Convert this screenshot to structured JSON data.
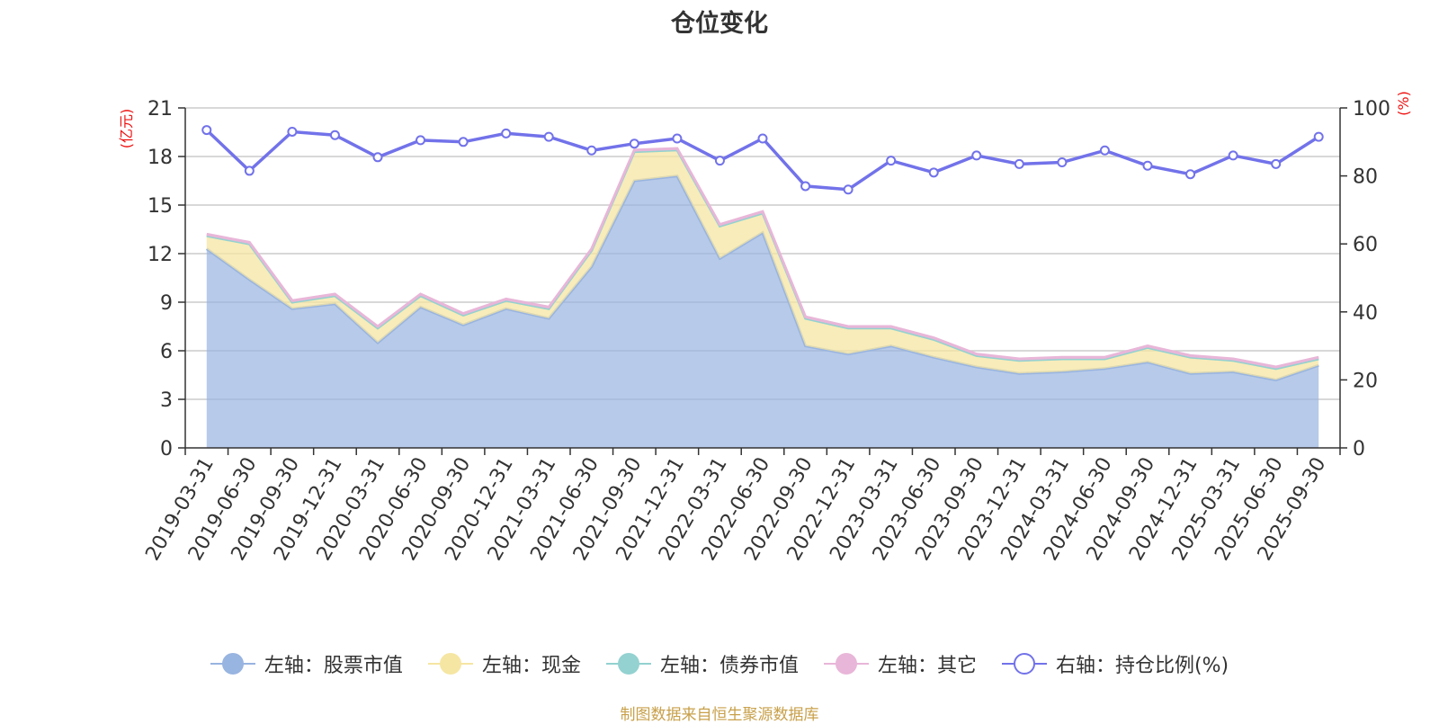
{
  "chart_data": {
    "type": "area",
    "title": "仓位变化",
    "left_axis": {
      "unit_label": "(亿元)",
      "ylim": [
        0,
        21
      ],
      "ticks": [
        0,
        3,
        6,
        9,
        12,
        15,
        18,
        21
      ]
    },
    "right_axis": {
      "unit_label": "(%)",
      "ylim": [
        0,
        100
      ],
      "ticks": [
        0,
        20,
        40,
        60,
        80,
        100
      ]
    },
    "categories": [
      "2019-03-31",
      "2019-06-30",
      "2019-09-30",
      "2019-12-31",
      "2020-03-31",
      "2020-06-30",
      "2020-09-30",
      "2020-12-31",
      "2021-03-31",
      "2021-06-30",
      "2021-09-30",
      "2021-12-31",
      "2022-03-31",
      "2022-06-30",
      "2022-09-30",
      "2022-12-31",
      "2023-03-31",
      "2023-06-30",
      "2023-09-30",
      "2023-12-31",
      "2024-03-31",
      "2024-06-30",
      "2024-09-30",
      "2024-12-31",
      "2025-03-31",
      "2025-06-30",
      "2025-09-30"
    ],
    "series": [
      {
        "name": "左轴：股票市值",
        "axis": "left",
        "stacked": true,
        "color": "#98b4e0",
        "values": [
          12.3,
          10.4,
          8.6,
          8.9,
          6.5,
          8.7,
          7.6,
          8.6,
          8.0,
          11.2,
          16.5,
          16.8,
          11.7,
          13.3,
          6.3,
          5.8,
          6.3,
          5.6,
          5.0,
          4.6,
          4.7,
          4.9,
          5.3,
          4.6,
          4.7,
          4.2,
          5.1
        ]
      },
      {
        "name": "左轴：现金",
        "axis": "left",
        "stacked": true,
        "color": "#f5e6a3",
        "values": [
          0.8,
          2.2,
          0.4,
          0.5,
          0.9,
          0.7,
          0.6,
          0.5,
          0.6,
          1.0,
          1.8,
          1.6,
          2.0,
          1.2,
          1.7,
          1.6,
          1.1,
          1.1,
          0.7,
          0.8,
          0.8,
          0.6,
          0.9,
          1.0,
          0.7,
          0.7,
          0.4
        ]
      },
      {
        "name": "左轴：债券市值",
        "axis": "left",
        "stacked": true,
        "color": "#93d2d0",
        "values": [
          0,
          0,
          0,
          0,
          0,
          0,
          0,
          0,
          0,
          0,
          0,
          0,
          0,
          0,
          0,
          0,
          0,
          0,
          0,
          0,
          0,
          0,
          0,
          0,
          0,
          0,
          0
        ]
      },
      {
        "name": "左轴：其它",
        "axis": "left",
        "stacked": true,
        "color": "#e8b6d8",
        "values": [
          0.1,
          0.1,
          0.1,
          0.1,
          0.1,
          0.1,
          0.1,
          0.1,
          0.1,
          0.1,
          0.1,
          0.1,
          0.1,
          0.1,
          0.1,
          0.1,
          0.1,
          0.1,
          0.1,
          0.1,
          0.1,
          0.1,
          0.1,
          0.1,
          0.1,
          0.1,
          0.1
        ]
      },
      {
        "name": "右轴：持仓比例(%)",
        "axis": "right",
        "type": "line",
        "color": "#7272ea",
        "values": [
          93.5,
          81.5,
          93,
          92,
          85.5,
          90.5,
          90,
          92.5,
          91.5,
          87.5,
          89.5,
          91,
          84.5,
          91,
          77,
          76,
          84.5,
          81,
          86,
          83.5,
          84,
          87.5,
          83,
          80.5,
          86,
          83.5,
          91.5
        ]
      }
    ]
  },
  "source_note": "制图数据来自恒生聚源数据库"
}
